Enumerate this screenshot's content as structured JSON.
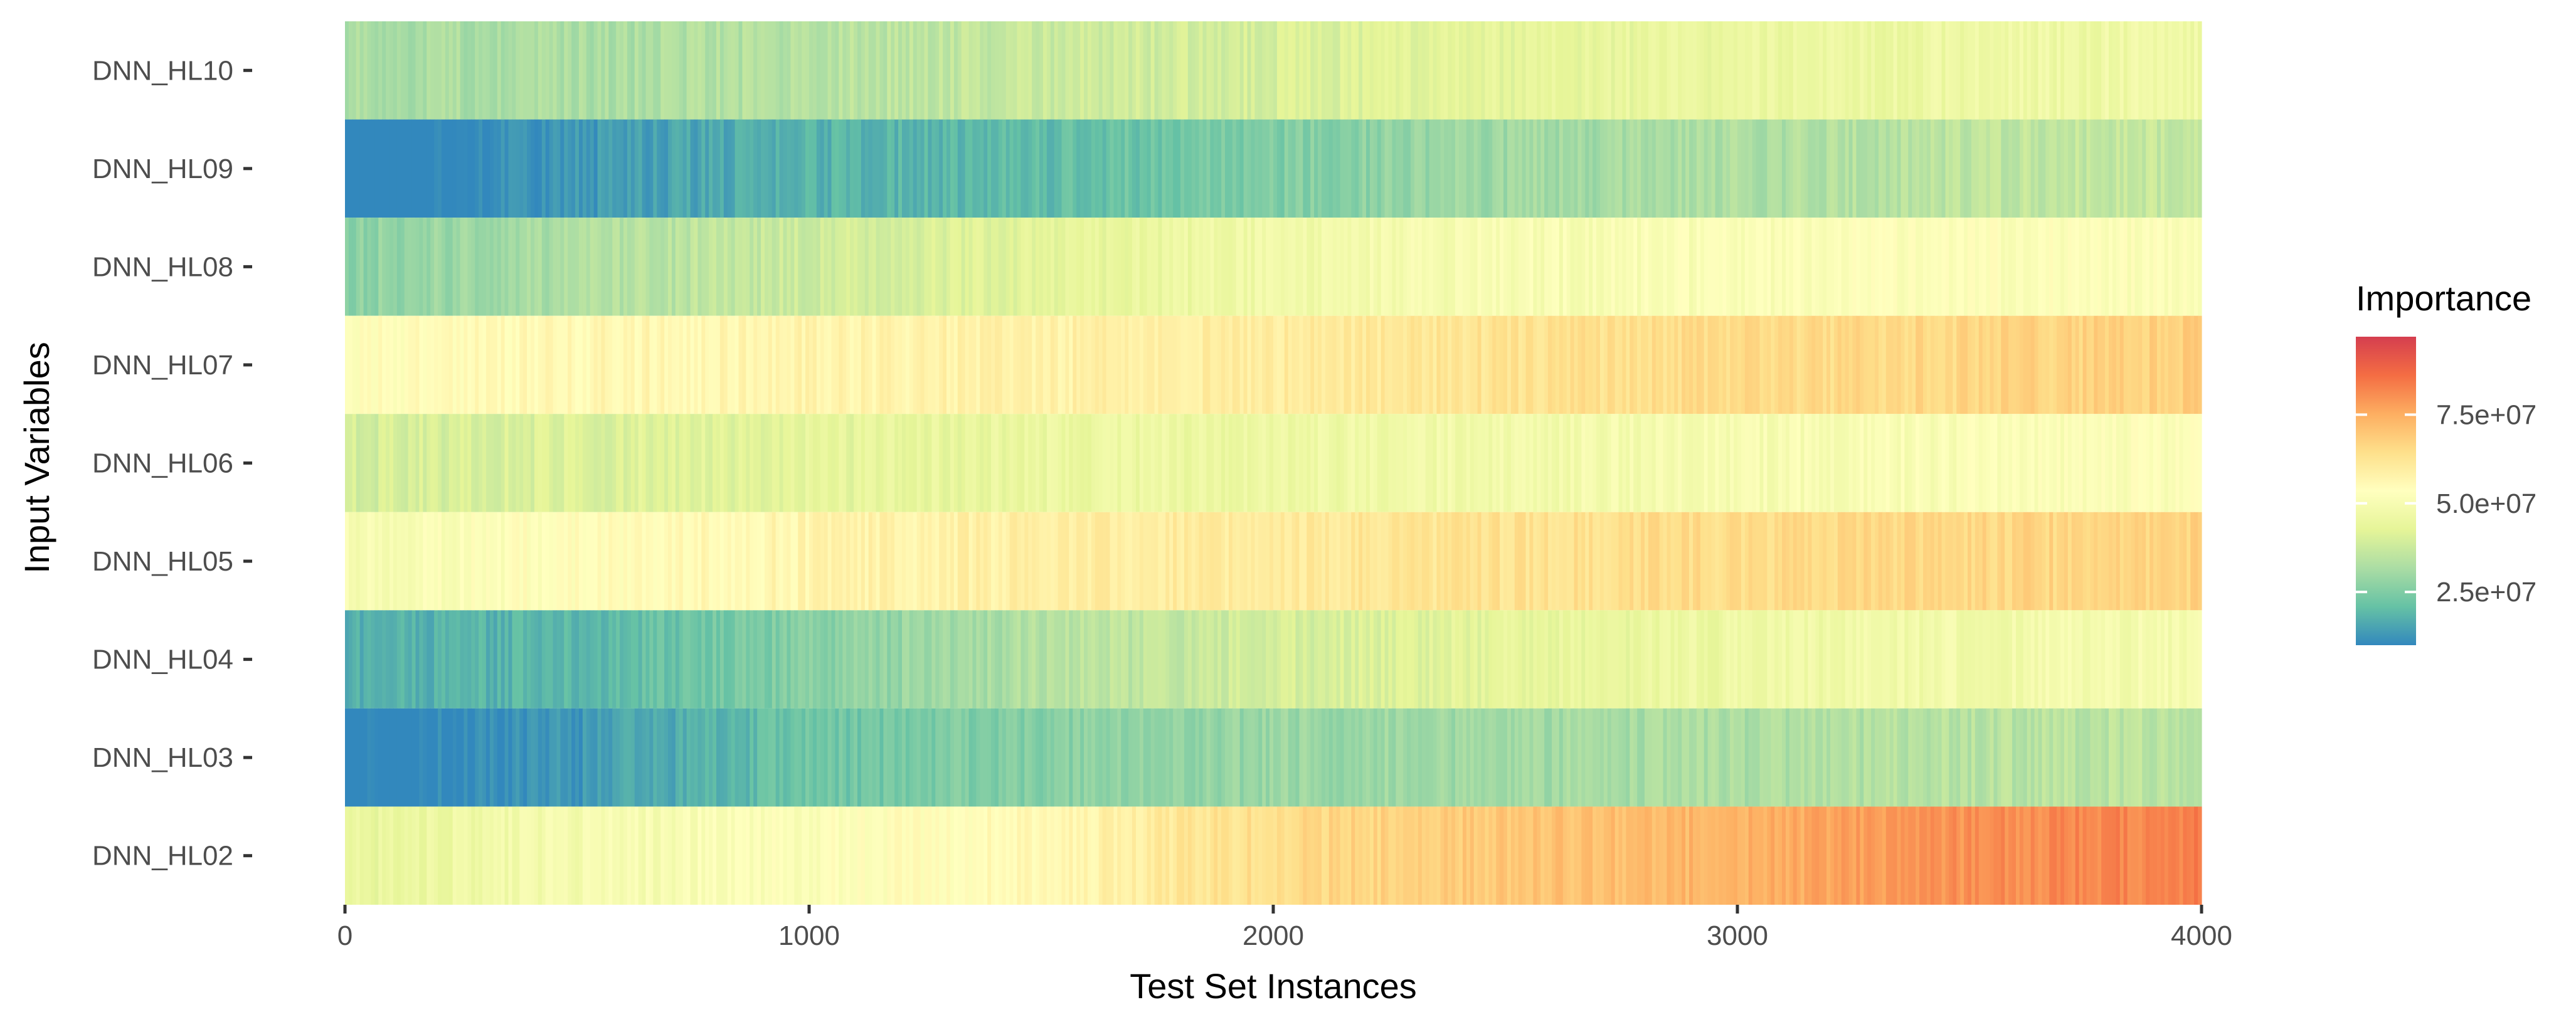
{
  "chart_data": {
    "type": "heatmap",
    "title": "",
    "xlabel": "Test Set Instances",
    "ylabel": "Input Variables",
    "xlim": [
      0,
      4000
    ],
    "x_ticks": [
      "0",
      "1000",
      "2000",
      "3000",
      "4000"
    ],
    "x_tick_values": [
      0,
      1000,
      2000,
      3000,
      4000
    ],
    "rows": [
      "DNN_HL10",
      "DNN_HL09",
      "DNN_HL08",
      "DNN_HL07",
      "DNN_HL06",
      "DNN_HL05",
      "DNN_HL04",
      "DNN_HL03",
      "DNN_HL02"
    ],
    "profile_x": [
      0,
      500,
      1000,
      1500,
      2000,
      2500,
      3000,
      3500,
      4000
    ],
    "row_profiles": {
      "DNN_HL10": [
        32000000.0,
        32000000.0,
        34000000.0,
        37000000.0,
        40000000.0,
        43000000.0,
        45000000.0,
        46000000.0,
        47000000.0
      ],
      "DNN_HL09": [
        6000000.0,
        13000000.0,
        18000000.0,
        20000000.0,
        25000000.0,
        30000000.0,
        32000000.0,
        35000000.0,
        37000000.0
      ],
      "DNN_HL08": [
        27000000.0,
        32000000.0,
        38000000.0,
        43000000.0,
        47000000.0,
        50000000.0,
        51000000.0,
        52000000.0,
        52000000.0
      ],
      "DNN_HL07": [
        53000000.0,
        56000000.0,
        57000000.0,
        58000000.0,
        60000000.0,
        63000000.0,
        65000000.0,
        66000000.0,
        68000000.0
      ],
      "DNN_HL06": [
        39000000.0,
        41000000.0,
        43000000.0,
        45000000.0,
        46000000.0,
        48000000.0,
        50000000.0,
        51000000.0,
        52000000.0
      ],
      "DNN_HL05": [
        50000000.0,
        54000000.0,
        57000000.0,
        59000000.0,
        61000000.0,
        63000000.0,
        65000000.0,
        66000000.0,
        67000000.0
      ],
      "DNN_HL04": [
        17000000.0,
        19000000.0,
        26000000.0,
        33000000.0,
        39000000.0,
        43000000.0,
        46000000.0,
        48000000.0,
        49000000.0
      ],
      "DNN_HL03": [
        8000000.0,
        13000000.0,
        22000000.0,
        26000000.0,
        29000000.0,
        30000000.0,
        32000000.0,
        34000000.0,
        35000000.0
      ],
      "DNN_HL02": [
        44000000.0,
        49000000.0,
        52000000.0,
        56000000.0,
        65000000.0,
        70000000.0,
        74000000.0,
        80000000.0,
        83000000.0
      ]
    },
    "color_scale": {
      "title": "Importance",
      "min": 10000000.0,
      "max": 97000000.0,
      "breaks": [
        25000000.0,
        50000000.0,
        75000000.0
      ],
      "break_labels": [
        "2.5e+07",
        "5.0e+07",
        "7.5e+07"
      ],
      "palette": [
        "#3288bd",
        "#66c2a5",
        "#abdda4",
        "#e6f598",
        "#ffffbf",
        "#fee08b",
        "#fdae61",
        "#f46d43",
        "#d53e4f"
      ]
    },
    "legend_position": "right",
    "grid": false
  }
}
